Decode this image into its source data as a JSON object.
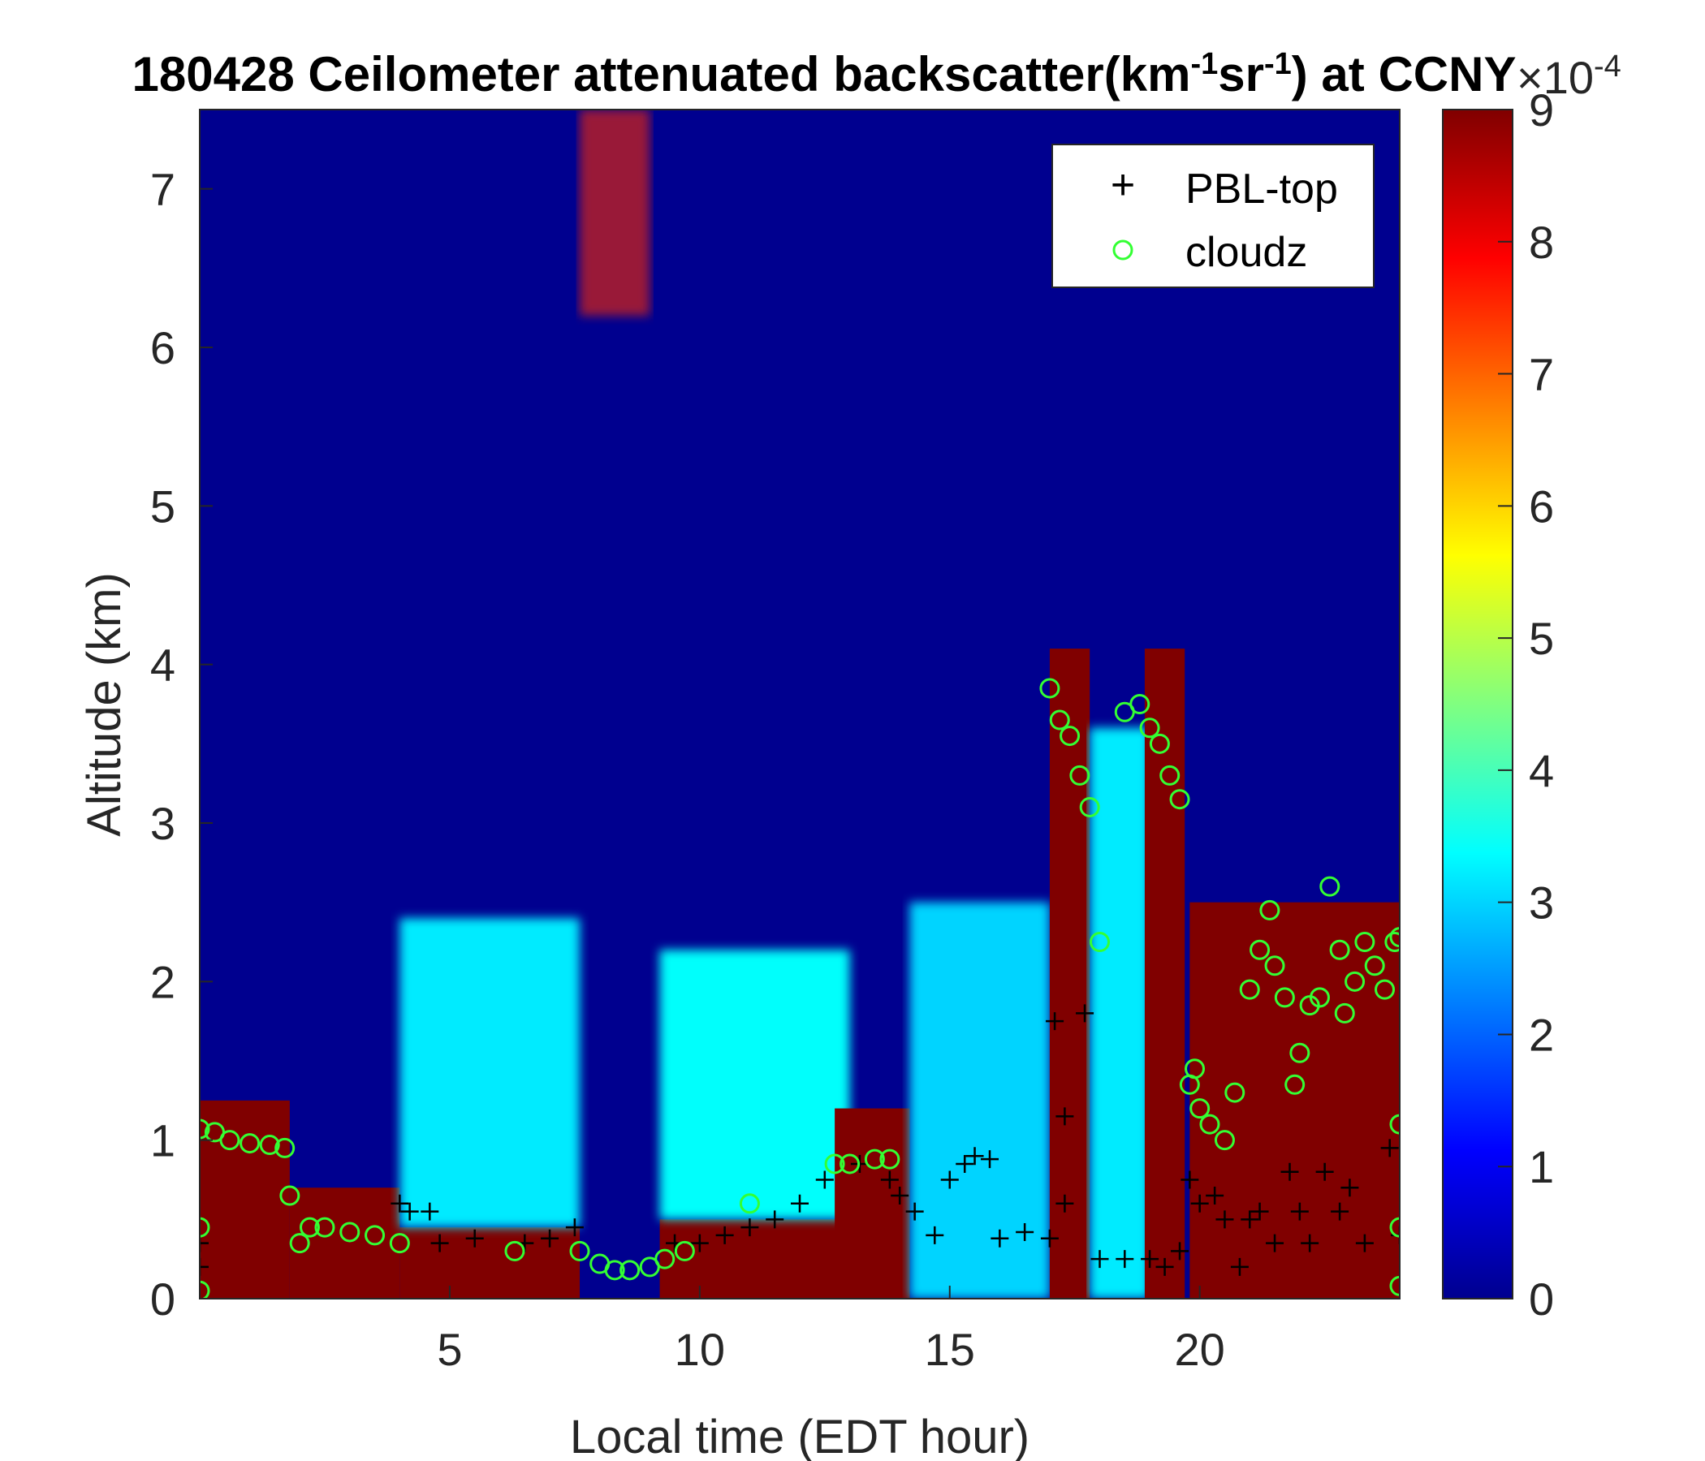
{
  "chart_data": {
    "type": "heatmap",
    "title_parts": [
      "180428 Ceilometer attenuated backscatter(km",
      "-1",
      "sr",
      "-1",
      ") at CCNY"
    ],
    "xlabel": "Local time (EDT hour)",
    "ylabel": "Altitude (km)",
    "xlim": [
      0,
      24
    ],
    "ylim": [
      0,
      7.5
    ],
    "xticks": [
      5,
      10,
      15,
      20
    ],
    "yticks": [
      0,
      1,
      2,
      3,
      4,
      5,
      6,
      7
    ],
    "colorbar": {
      "range": [
        0,
        9
      ],
      "ticks": [
        0,
        1,
        2,
        3,
        4,
        5,
        6,
        7,
        8,
        9
      ],
      "multiplier": "×10",
      "exponent": "-4",
      "colormap": "jet"
    },
    "legend": {
      "position": "top-right",
      "entries": [
        {
          "name": "PBL-top",
          "marker": "+",
          "color": "#000000"
        },
        {
          "name": "cloudz",
          "marker": "o",
          "color": "#33ff33"
        }
      ]
    },
    "backscatter_features": [
      {
        "x0": 0.0,
        "x1": 1.8,
        "y0": 0.0,
        "y1": 1.25,
        "level": 9,
        "kind": "aerosol-layer"
      },
      {
        "x0": 1.8,
        "x1": 4.0,
        "y0": 0.0,
        "y1": 0.7,
        "level": 9,
        "kind": "aerosol-layer"
      },
      {
        "x0": 4.0,
        "x1": 7.6,
        "y0": 0.0,
        "y1": 0.45,
        "level": 9,
        "kind": "aerosol-layer"
      },
      {
        "x0": 4.0,
        "x1": 7.6,
        "y0": 0.45,
        "y1": 2.4,
        "level": 3.2,
        "kind": "residual-layer"
      },
      {
        "x0": 9.2,
        "x1": 12.8,
        "y0": 0.0,
        "y1": 0.5,
        "level": 9,
        "kind": "aerosol-layer"
      },
      {
        "x0": 9.2,
        "x1": 13.0,
        "y0": 0.5,
        "y1": 2.2,
        "level": 3.4,
        "kind": "residual-layer"
      },
      {
        "x0": 12.7,
        "x1": 14.2,
        "y0": 0.0,
        "y1": 1.2,
        "level": 9,
        "kind": "aerosol-layer"
      },
      {
        "x0": 14.2,
        "x1": 17.0,
        "y0": 0.0,
        "y1": 2.5,
        "level": 3.0,
        "kind": "residual-layer"
      },
      {
        "x0": 17.0,
        "x1": 17.8,
        "y0": 0.0,
        "y1": 4.1,
        "level": 9,
        "kind": "cloud"
      },
      {
        "x0": 17.8,
        "x1": 19.0,
        "y0": 0.0,
        "y1": 3.6,
        "level": 3.2,
        "kind": "residual-layer"
      },
      {
        "x0": 18.9,
        "x1": 19.7,
        "y0": 0.0,
        "y1": 4.1,
        "level": 9,
        "kind": "cloud"
      },
      {
        "x0": 19.8,
        "x1": 24.0,
        "y0": 0.0,
        "y1": 2.5,
        "level": 9,
        "kind": "cloud"
      },
      {
        "x0": 7.6,
        "x1": 9.0,
        "y0": 6.2,
        "y1": 7.5,
        "level": 7.5,
        "kind": "cirrus"
      }
    ],
    "series": [
      {
        "name": "PBL-top",
        "marker": "+",
        "points": [
          [
            0.0,
            0.35
          ],
          [
            0.0,
            0.2
          ],
          [
            4.0,
            0.6
          ],
          [
            4.2,
            0.55
          ],
          [
            4.6,
            0.55
          ],
          [
            4.8,
            0.35
          ],
          [
            5.5,
            0.38
          ],
          [
            6.5,
            0.35
          ],
          [
            7.0,
            0.38
          ],
          [
            7.5,
            0.45
          ],
          [
            9.5,
            0.35
          ],
          [
            10.0,
            0.35
          ],
          [
            10.5,
            0.4
          ],
          [
            11.0,
            0.45
          ],
          [
            11.5,
            0.5
          ],
          [
            12.0,
            0.6
          ],
          [
            12.5,
            0.75
          ],
          [
            13.2,
            0.85
          ],
          [
            13.8,
            0.75
          ],
          [
            14.0,
            0.65
          ],
          [
            14.3,
            0.55
          ],
          [
            14.7,
            0.4
          ],
          [
            15.0,
            0.75
          ],
          [
            15.3,
            0.85
          ],
          [
            15.5,
            0.9
          ],
          [
            15.8,
            0.88
          ],
          [
            16.0,
            0.38
          ],
          [
            16.5,
            0.42
          ],
          [
            17.0,
            0.38
          ],
          [
            17.1,
            1.75
          ],
          [
            17.3,
            1.15
          ],
          [
            17.3,
            0.6
          ],
          [
            17.7,
            1.8
          ],
          [
            18.0,
            0.25
          ],
          [
            18.5,
            0.25
          ],
          [
            19.0,
            0.25
          ],
          [
            19.3,
            0.2
          ],
          [
            19.6,
            0.3
          ],
          [
            19.8,
            0.75
          ],
          [
            20.0,
            0.6
          ],
          [
            20.3,
            0.65
          ],
          [
            20.5,
            0.5
          ],
          [
            20.8,
            0.2
          ],
          [
            21.0,
            0.5
          ],
          [
            21.2,
            0.55
          ],
          [
            21.5,
            0.35
          ],
          [
            21.8,
            0.8
          ],
          [
            22.0,
            0.55
          ],
          [
            22.2,
            0.35
          ],
          [
            22.5,
            0.8
          ],
          [
            22.8,
            0.55
          ],
          [
            23.0,
            0.7
          ],
          [
            23.3,
            0.35
          ],
          [
            23.8,
            0.95
          ],
          [
            24.0,
            0.4
          ]
        ]
      },
      {
        "name": "cloudz",
        "marker": "o",
        "points": [
          [
            0.0,
            1.07
          ],
          [
            0.3,
            1.05
          ],
          [
            0.6,
            1.0
          ],
          [
            1.0,
            0.98
          ],
          [
            1.4,
            0.97
          ],
          [
            1.7,
            0.95
          ],
          [
            1.8,
            0.65
          ],
          [
            2.0,
            0.35
          ],
          [
            2.2,
            0.45
          ],
          [
            2.5,
            0.45
          ],
          [
            3.0,
            0.42
          ],
          [
            3.5,
            0.4
          ],
          [
            4.0,
            0.35
          ],
          [
            6.3,
            0.3
          ],
          [
            7.6,
            0.3
          ],
          [
            8.0,
            0.22
          ],
          [
            8.3,
            0.18
          ],
          [
            8.6,
            0.18
          ],
          [
            9.0,
            0.2
          ],
          [
            9.3,
            0.25
          ],
          [
            9.7,
            0.3
          ],
          [
            11.0,
            0.6
          ],
          [
            12.7,
            0.85
          ],
          [
            13.0,
            0.85
          ],
          [
            13.5,
            0.88
          ],
          [
            13.8,
            0.88
          ],
          [
            17.0,
            3.85
          ],
          [
            17.2,
            3.65
          ],
          [
            17.4,
            3.55
          ],
          [
            17.6,
            3.3
          ],
          [
            17.8,
            3.1
          ],
          [
            18.0,
            2.25
          ],
          [
            18.5,
            3.7
          ],
          [
            18.8,
            3.75
          ],
          [
            19.0,
            3.6
          ],
          [
            19.2,
            3.5
          ],
          [
            19.4,
            3.3
          ],
          [
            19.6,
            3.15
          ],
          [
            19.8,
            1.35
          ],
          [
            19.9,
            1.45
          ],
          [
            20.0,
            1.2
          ],
          [
            20.2,
            1.1
          ],
          [
            20.5,
            1.0
          ],
          [
            20.7,
            1.3
          ],
          [
            21.0,
            1.95
          ],
          [
            21.2,
            2.2
          ],
          [
            21.4,
            2.45
          ],
          [
            21.5,
            2.1
          ],
          [
            21.7,
            1.9
          ],
          [
            21.9,
            1.35
          ],
          [
            22.0,
            1.55
          ],
          [
            22.2,
            1.85
          ],
          [
            22.4,
            1.9
          ],
          [
            22.6,
            2.6
          ],
          [
            22.8,
            2.2
          ],
          [
            22.9,
            1.8
          ],
          [
            23.1,
            2.0
          ],
          [
            23.3,
            2.25
          ],
          [
            23.5,
            2.1
          ],
          [
            23.7,
            1.95
          ],
          [
            23.9,
            2.25
          ],
          [
            24.0,
            2.28
          ],
          [
            24.0,
            1.1
          ],
          [
            24.0,
            0.45
          ],
          [
            24.0,
            0.08
          ],
          [
            0.0,
            0.45
          ],
          [
            0.0,
            0.05
          ]
        ]
      }
    ]
  }
}
